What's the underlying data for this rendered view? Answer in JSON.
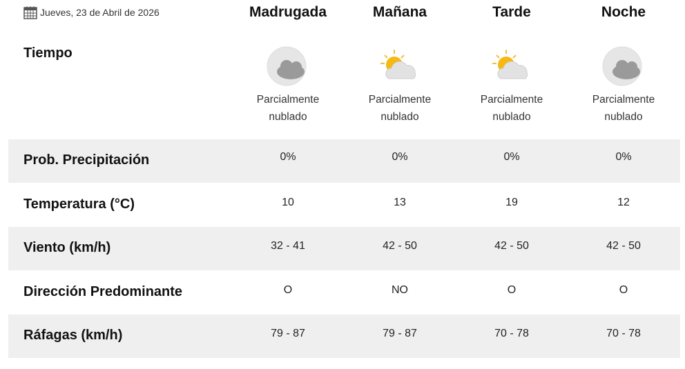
{
  "date": "Jueves, 23 de Abril de 2026",
  "periods": [
    {
      "name": "Madrugada",
      "icon": "moon-cloud-icon",
      "desc1": "Parcialmente",
      "desc2": "nublado"
    },
    {
      "name": "Mañana",
      "icon": "sun-cloud-icon",
      "desc1": "Parcialmente",
      "desc2": "nublado"
    },
    {
      "name": "Tarde",
      "icon": "sun-cloud-icon",
      "desc1": "Parcialmente",
      "desc2": "nublado"
    },
    {
      "name": "Noche",
      "icon": "moon-cloud-icon",
      "desc1": "Parcialmente",
      "desc2": "nublado"
    }
  ],
  "tiempo_label": "Tiempo",
  "rows": [
    {
      "label": "Prob. Precipitación",
      "values": [
        "0%",
        "0%",
        "0%",
        "0%"
      ]
    },
    {
      "label": "Temperatura (°C)",
      "values": [
        "10",
        "13",
        "19",
        "12"
      ]
    },
    {
      "label": "Viento (km/h)",
      "values": [
        "32 - 41",
        "42 - 50",
        "42 - 50",
        "42 - 50"
      ]
    },
    {
      "label": "Dirección Predominante",
      "values": [
        "O",
        "NO",
        "O",
        "O"
      ]
    },
    {
      "label": "Ráfagas (km/h)",
      "values": [
        "79 - 87",
        "79 - 87",
        "70 - 78",
        "70 - 78"
      ]
    }
  ]
}
